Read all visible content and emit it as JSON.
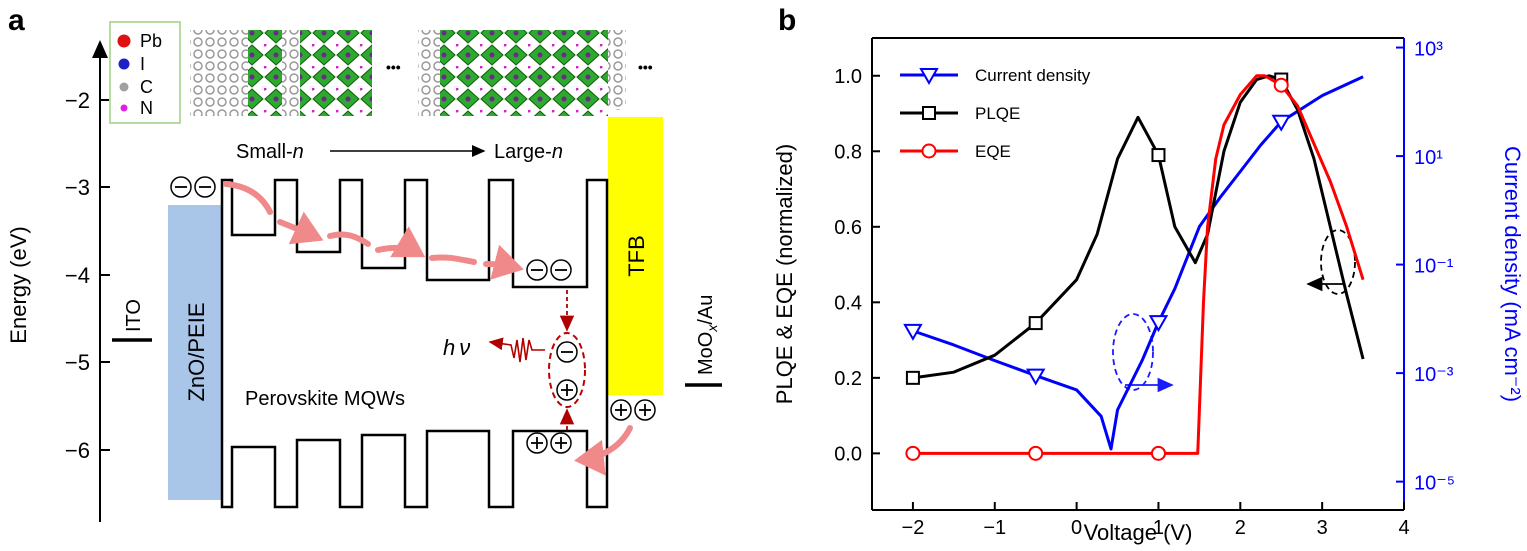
{
  "panel_a": {
    "label": "a",
    "legend": [
      "Pb",
      "I",
      "C",
      "N"
    ],
    "axis_label": "Energy (eV)",
    "ticks": [
      "−2",
      "−3",
      "−4",
      "−5",
      "−6"
    ],
    "small": "Small-",
    "large": "Large-",
    "n": "n",
    "dots": "•••",
    "mqw": "Perovskite MQWs",
    "ito": "ITO",
    "zno": "ZnO/PEIE",
    "tfb": "TFB",
    "moo": "MoO",
    "moo_sub": "x",
    "moo_au": "/Au",
    "h": "h",
    "nu": "ν"
  },
  "chart_data": {
    "type": "line",
    "panel_label": "b",
    "xlabel": "Voltage (V)",
    "ylabel": "PLQE & EQE (normalized)",
    "y2label": "Current density (mA cm⁻²)",
    "y2color": "#0000ff",
    "xlim": [
      -2.5,
      4
    ],
    "ylim": [
      -0.15,
      1.1
    ],
    "y2lim": [
      3e-06,
      1500
    ],
    "y2scale": "log",
    "xticks": [
      {
        "value": -2,
        "label": "−2"
      },
      {
        "value": -1,
        "label": "−1"
      },
      0,
      1,
      2,
      3,
      4
    ],
    "yticks": [
      {
        "value": 0,
        "label": "0.0"
      },
      0.2,
      0.4,
      0.6,
      0.8,
      {
        "value": 1,
        "label": "1.0"
      }
    ],
    "y2ticks": [
      {
        "value": 1e-05,
        "label": "10⁻⁵"
      },
      {
        "value": 0.001,
        "label": "10⁻³"
      },
      {
        "value": 0.1,
        "label": "10⁻¹"
      },
      {
        "value": 10,
        "label": "10¹"
      },
      {
        "value": 1000,
        "label": "10³"
      }
    ],
    "legend": "upper left",
    "series": [
      {
        "name": "Current density",
        "color": "#0000ff",
        "axis": "y2",
        "marker": "triangle-down",
        "x": [
          -2,
          -1.5,
          -1,
          -0.5,
          0,
          0.3,
          0.42,
          0.5,
          0.8,
          1,
          1.2,
          1.5,
          1.75,
          2,
          2.25,
          2.5,
          3,
          3.5
        ],
        "values": [
          0.006,
          0.0033,
          0.0017,
          0.0009,
          0.00049,
          0.00016,
          4e-05,
          0.00021,
          0.0017,
          0.0087,
          0.036,
          0.5,
          1.7,
          5.2,
          16,
          43,
          130,
          290
        ],
        "marker_at": [
          0,
          3,
          9,
          15
        ]
      },
      {
        "name": "PLQE",
        "color": "#000000",
        "marker": "square",
        "x": [
          -2,
          -1.5,
          -1,
          -0.5,
          0,
          0.25,
          0.5,
          0.75,
          1,
          1.2,
          1.45,
          1.6,
          1.8,
          2,
          2.2,
          2.35,
          2.5,
          2.7,
          2.9,
          3.1,
          3.3,
          3.5
        ],
        "values": [
          0.2,
          0.215,
          0.26,
          0.345,
          0.46,
          0.58,
          0.78,
          0.89,
          0.79,
          0.6,
          0.505,
          0.58,
          0.8,
          0.93,
          0.99,
          1.0,
          0.99,
          0.91,
          0.78,
          0.6,
          0.42,
          0.25
        ],
        "marker_at": [
          0,
          3,
          8,
          16
        ]
      },
      {
        "name": "EQE",
        "color": "#ff0000",
        "marker": "circle",
        "x": [
          -2,
          -0.5,
          1,
          1.48,
          1.55,
          1.6,
          1.7,
          1.8,
          2,
          2.2,
          2.3,
          2.5,
          2.7,
          2.9,
          3.1,
          3.3,
          3.5
        ],
        "values": [
          0,
          0,
          0,
          0,
          0.4,
          0.6,
          0.78,
          0.87,
          0.95,
          1.0,
          1.0,
          0.975,
          0.92,
          0.82,
          0.72,
          0.6,
          0.46
        ],
        "marker_at": [
          0,
          1,
          2,
          11
        ]
      }
    ]
  }
}
